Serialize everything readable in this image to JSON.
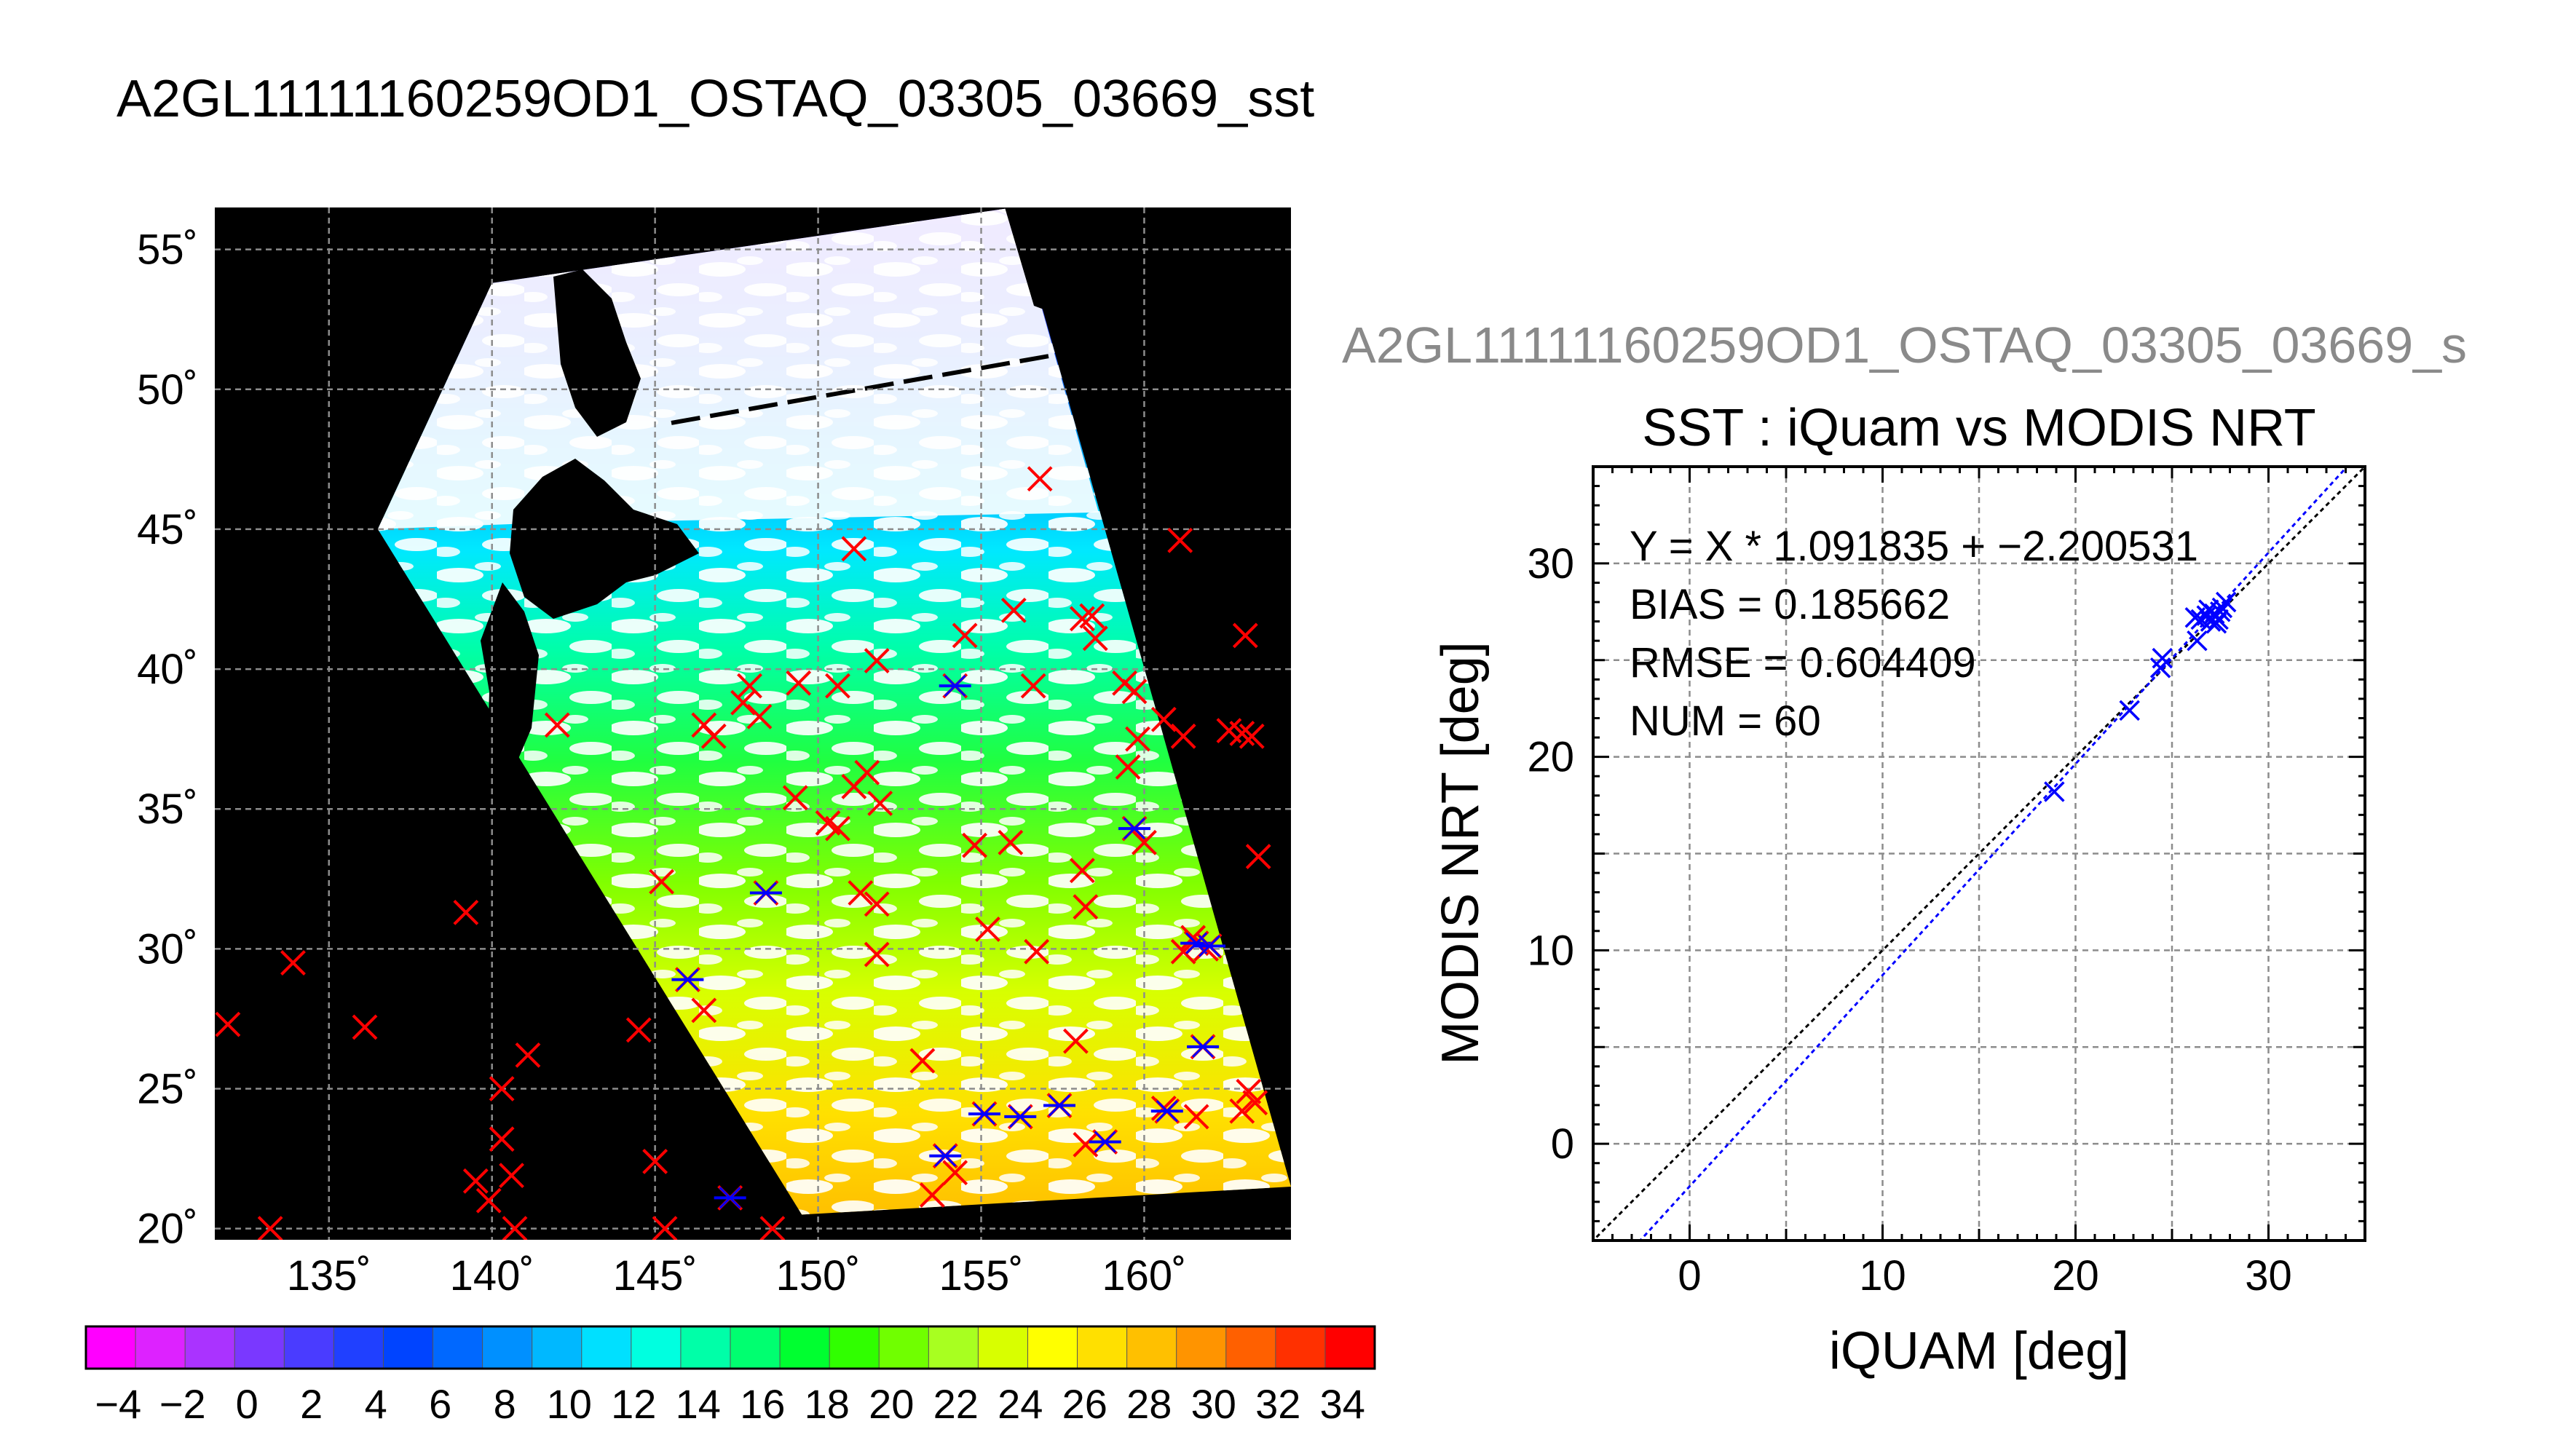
{
  "figure": {
    "main_title": "A2GL11111160259OD1_OSTAQ_03305_03669_sst",
    "sub_title": "A2GL11111160259OD1_OSTAQ_03305_03669_s"
  },
  "chart_data": [
    {
      "type": "map",
      "lon_range": [
        131.5,
        164.5
      ],
      "lat_range": [
        19.6,
        56.5
      ],
      "lon_ticks": [
        135,
        140,
        145,
        150,
        155,
        160
      ],
      "lat_ticks": [
        20,
        25,
        30,
        35,
        40,
        45,
        50,
        55
      ],
      "lon_tick_labels": [
        "135˚",
        "140˚",
        "145˚",
        "150˚",
        "155˚",
        "160˚"
      ],
      "lat_tick_labels": [
        "20˚",
        "25˚",
        "30˚",
        "35˚",
        "40˚",
        "45˚",
        "50˚",
        "55˚"
      ],
      "grid": true,
      "swath": [
        [
          136.5,
          45
        ],
        [
          140,
          53.8
        ],
        [
          156,
          56.5
        ],
        [
          164.5,
          21.5
        ],
        [
          149.5,
          20.5
        ]
      ],
      "swath_gap": [
        [
          145.5,
          48.8
        ],
        [
          161,
          52
        ]
      ],
      "red_markers": [
        [
          131.9,
          27.3
        ],
        [
          133.9,
          29.5
        ],
        [
          136.1,
          27.2
        ],
        [
          139.2,
          31.3
        ],
        [
          140.3,
          25
        ],
        [
          141.1,
          26.2
        ],
        [
          139.5,
          21.7
        ],
        [
          139.9,
          21
        ],
        [
          140.3,
          23.2
        ],
        [
          140.6,
          21.9
        ],
        [
          140.7,
          20
        ],
        [
          133.2,
          20
        ],
        [
          144.5,
          27.1
        ],
        [
          145,
          22.4
        ],
        [
          145.3,
          20
        ],
        [
          145.2,
          32.4
        ],
        [
          146.5,
          27.8
        ],
        [
          148.6,
          20
        ],
        [
          142,
          38
        ],
        [
          146.5,
          38
        ],
        [
          146.8,
          37.6
        ],
        [
          147.9,
          39.4
        ],
        [
          147.7,
          38.8
        ],
        [
          148.2,
          38.3
        ],
        [
          149.4,
          39.5
        ],
        [
          151.1,
          44.3
        ],
        [
          150.6,
          39.4
        ],
        [
          151.8,
          40.3
        ],
        [
          151.5,
          36.3
        ],
        [
          151.1,
          35.8
        ],
        [
          151.9,
          35.2
        ],
        [
          149.3,
          35.4
        ],
        [
          150.3,
          34.5
        ],
        [
          150.6,
          34.3
        ],
        [
          151.3,
          32
        ],
        [
          151.8,
          31.6
        ],
        [
          151.8,
          29.8
        ],
        [
          153.2,
          26
        ],
        [
          153.5,
          21.2
        ],
        [
          154.2,
          22
        ],
        [
          154.5,
          41.2
        ],
        [
          154.8,
          33.7
        ],
        [
          155.2,
          30.7
        ],
        [
          155.9,
          33.8
        ],
        [
          156,
          42.1
        ],
        [
          156.6,
          39.4
        ],
        [
          156.7,
          29.9
        ],
        [
          156.8,
          46.8
        ],
        [
          158.1,
          41.8
        ],
        [
          158.4,
          41.9
        ],
        [
          158.5,
          41.1
        ],
        [
          159.4,
          39.5
        ],
        [
          159.7,
          39.2
        ],
        [
          158.1,
          32.8
        ],
        [
          158.2,
          31.5
        ],
        [
          157.9,
          26.7
        ],
        [
          159.5,
          36.5
        ],
        [
          159.8,
          37.5
        ],
        [
          160,
          33.8
        ],
        [
          161.1,
          44.6
        ],
        [
          160.6,
          38.2
        ],
        [
          161.2,
          37.6
        ],
        [
          161.2,
          29.9
        ],
        [
          161.5,
          30.4
        ],
        [
          161.6,
          24
        ],
        [
          162.6,
          37.8
        ],
        [
          163,
          37.7
        ],
        [
          163.3,
          37.6
        ],
        [
          163.1,
          41.2
        ],
        [
          163.5,
          33.3
        ],
        [
          163,
          24.2
        ],
        [
          163.2,
          24.9
        ],
        [
          163.4,
          24.5
        ],
        [
          161.9,
          30
        ],
        [
          160.6,
          24.3
        ],
        [
          158.2,
          23
        ]
      ],
      "overlap_markers": [
        [
          146,
          28.9
        ],
        [
          148.4,
          32
        ],
        [
          147.3,
          21.1
        ],
        [
          153.9,
          22.6
        ],
        [
          155.1,
          24.1
        ],
        [
          156.2,
          24
        ],
        [
          157.4,
          24.4
        ],
        [
          158.8,
          23.1
        ],
        [
          160.7,
          24.2
        ],
        [
          161.6,
          30.2
        ],
        [
          162,
          30.1
        ],
        [
          161.8,
          26.5
        ],
        [
          154.2,
          39.4
        ],
        [
          159.7,
          34.3
        ]
      ],
      "colorbar": {
        "range": [
          -5,
          35
        ],
        "tick_values": [
          -4,
          -2,
          0,
          2,
          4,
          6,
          8,
          10,
          12,
          14,
          16,
          18,
          20,
          22,
          24,
          26,
          28,
          30,
          32,
          34
        ],
        "tick_labels": [
          "−4",
          "−2",
          "0",
          "2",
          "4",
          "6",
          "8",
          "10",
          "12",
          "14",
          "16",
          "18",
          "20",
          "22",
          "24",
          "26",
          "28",
          "30",
          "32",
          "34"
        ],
        "colors": [
          "#ff00ff",
          "#dd22ff",
          "#aa33ff",
          "#7a38ff",
          "#4a3cff",
          "#2040ff",
          "#0044ff",
          "#0068ff",
          "#0090ff",
          "#00b8ff",
          "#00e0ff",
          "#00ffe0",
          "#00ffa8",
          "#00ff70",
          "#00ff30",
          "#30ff00",
          "#70ff00",
          "#a8ff20",
          "#d8ff00",
          "#ffff00",
          "#ffe000",
          "#ffc000",
          "#ff9400",
          "#ff6000",
          "#ff3000",
          "#ff0000"
        ]
      }
    },
    {
      "type": "scatter",
      "title": "SST : iQuam vs MODIS NRT",
      "xlabel": "iQUAM [deg]",
      "ylabel": "MODIS NRT [deg]",
      "xlim": [
        -5,
        35
      ],
      "ylim": [
        -5,
        35
      ],
      "x_ticks": [
        0,
        10,
        20,
        30
      ],
      "y_ticks": [
        0,
        10,
        20,
        30
      ],
      "x_tick_labels": [
        "0",
        "10",
        "20",
        "30"
      ],
      "y_tick_labels": [
        "0",
        "10",
        "20",
        "30"
      ],
      "grid": true,
      "annotations": [
        "Y = X * 1.091835 + −2.200531",
        "BIAS = 0.185662",
        "RMSE = 0.604409",
        "NUM = 60"
      ],
      "fit": {
        "slope": 1.091835,
        "intercept": -2.200531
      },
      "identity_line": true,
      "points": [
        [
          18.9,
          18.2
        ],
        [
          22.8,
          22.4
        ],
        [
          24.4,
          24.6
        ],
        [
          24.5,
          25.1
        ],
        [
          26.3,
          26.0
        ],
        [
          26.2,
          27.2
        ],
        [
          26.5,
          27.1
        ],
        [
          26.8,
          27.3
        ],
        [
          27.0,
          27.0
        ],
        [
          27.2,
          27.4
        ],
        [
          27.4,
          27.1
        ],
        [
          27.6,
          27.7
        ],
        [
          27.8,
          28.0
        ],
        [
          27.5,
          27.5
        ],
        [
          26.9,
          27.6
        ],
        [
          27.3,
          26.9
        ]
      ]
    }
  ],
  "colors": {
    "marker_red": "#ff0000",
    "marker_blue": "#0000ff",
    "land_black": "#000000",
    "cloud_white": "#ffffff",
    "grid": "#8c8c8c",
    "fit_line": "#0000ff",
    "identity_line": "#000000"
  }
}
